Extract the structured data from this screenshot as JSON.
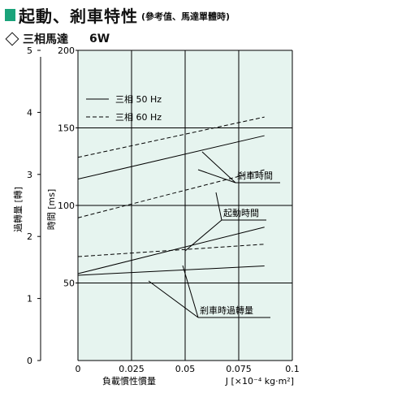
{
  "title": {
    "main": "起動、剎車特性",
    "sub": "(參考值、馬達單體時)",
    "color": "#1aa37a"
  },
  "subtitle": {
    "model": "三相馬達",
    "wattage": "6W"
  },
  "chart_data": {
    "type": "line",
    "plot_background": "#e6f4ef",
    "grid": true,
    "legend_position": "top-left",
    "xlabel": "負載慣性慣量",
    "xunit": "J [×10⁻⁴ kg·m²]",
    "xlim": [
      0,
      0.1
    ],
    "xticks": [
      "0",
      "0.025",
      "0.05",
      "0.075",
      "0.1"
    ],
    "ylabel_time": "時間 [ms]",
    "ylim_time": [
      0,
      200
    ],
    "yticks_time": [
      "50",
      "100",
      "150",
      "200"
    ],
    "ylabel_rev": "過轉量 [轉]",
    "ylim_rev": [
      0,
      5
    ],
    "yticks_rev": [
      "0",
      "1",
      "2",
      "3",
      "4",
      "5"
    ],
    "legend": [
      {
        "label": "三相 50 Hz",
        "style": "solid"
      },
      {
        "label": "三相 60 Hz",
        "style": "dashed"
      }
    ],
    "series": [
      {
        "group": "剎車時間",
        "name": "三相 60 Hz",
        "style": "dashed",
        "x": [
          0,
          0.087
        ],
        "y": [
          131,
          157
        ]
      },
      {
        "group": "剎車時間",
        "name": "三相 50 Hz",
        "style": "solid",
        "x": [
          0,
          0.087
        ],
        "y": [
          117,
          145
        ]
      },
      {
        "group": "起動時間",
        "name": "三相 60 Hz",
        "style": "dashed",
        "x": [
          0,
          0.087
        ],
        "y": [
          92,
          123
        ]
      },
      {
        "group": "起動時間",
        "name": "三相 50 Hz",
        "style": "solid",
        "x": [
          0,
          0.087
        ],
        "y": [
          56,
          86
        ]
      },
      {
        "group": "剎車時過轉量",
        "name": "三相 60 Hz",
        "style": "dashed",
        "x": [
          0,
          0.087
        ],
        "y": [
          67,
          75
        ]
      },
      {
        "group": "剎車時過轉量",
        "name": "三相 50 Hz",
        "style": "solid",
        "x": [
          0,
          0.087
        ],
        "y": [
          55,
          61
        ]
      }
    ],
    "annotations": {
      "brake_time": "剎車時間",
      "start_time": "起動時間",
      "brake_overrun": "剎車時過轉量"
    }
  }
}
